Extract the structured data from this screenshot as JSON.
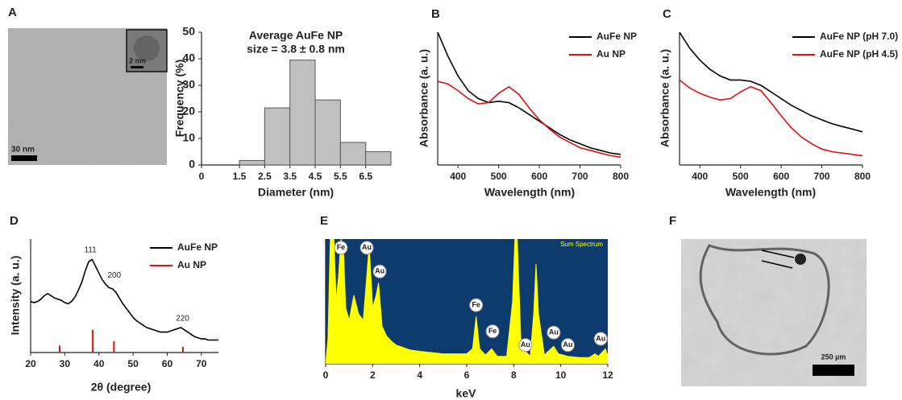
{
  "panel_labels": [
    "A",
    "B",
    "C",
    "D",
    "E",
    "F"
  ],
  "micrograph_a": {
    "scale_bar": "30 nm",
    "inset_scale_bar": "2 nm"
  },
  "micrograph_f": {
    "scale_bar": "250 µm"
  },
  "chart_data": [
    {
      "type": "histogram",
      "annotation": [
        "Average AuFe NP",
        "size = 3.8 ± 0.8 nm"
      ],
      "x_label": "Diameter (nm)",
      "y_label": "Frequency (%)",
      "bins": [
        1.5,
        2.5,
        3.5,
        4.5,
        5.5,
        6.5,
        7.5
      ],
      "values": [
        1.7,
        21.5,
        39.5,
        24.5,
        8.5,
        5
      ],
      "color": "#c0c0c0",
      "xlim": [
        0,
        7.5
      ],
      "xticks": [
        0,
        1.5,
        2.5,
        3.5,
        4.5,
        5.5,
        6.5
      ],
      "ylim": [
        0,
        50
      ],
      "yticks": [
        0,
        10,
        20,
        30,
        40,
        50
      ]
    },
    {
      "type": "line",
      "x_label": "Wavelength (nm)",
      "y_label": "Absorbance (a. u.)",
      "x": [
        350,
        375,
        400,
        425,
        450,
        475,
        500,
        525,
        550,
        575,
        600,
        625,
        650,
        675,
        700,
        725,
        750,
        775,
        800
      ],
      "series": [
        {
          "name": "AuFe NP",
          "color": "#000000",
          "values": [
            1.0,
            0.82,
            0.67,
            0.56,
            0.5,
            0.47,
            0.48,
            0.47,
            0.43,
            0.38,
            0.33,
            0.28,
            0.23,
            0.19,
            0.16,
            0.13,
            0.11,
            0.09,
            0.08
          ]
        },
        {
          "name": "Au NP",
          "color": "#e01010",
          "values": [
            0.63,
            0.61,
            0.56,
            0.5,
            0.46,
            0.47,
            0.54,
            0.59,
            0.53,
            0.43,
            0.34,
            0.27,
            0.21,
            0.17,
            0.13,
            0.11,
            0.09,
            0.07,
            0.06
          ]
        }
      ],
      "xlim": [
        350,
        800
      ],
      "xticks": [
        400,
        500,
        600,
        700,
        800
      ],
      "ylim": [
        0,
        1
      ]
    },
    {
      "type": "line",
      "x_label": "Wavelength (nm)",
      "y_label": "Absorbance (a. u.)",
      "x": [
        350,
        375,
        400,
        425,
        450,
        475,
        500,
        525,
        550,
        575,
        600,
        625,
        650,
        675,
        700,
        725,
        750,
        775,
        800
      ],
      "series": [
        {
          "name": "AuFe NP (pH 7.0)",
          "color": "#000000",
          "values": [
            1.0,
            0.88,
            0.79,
            0.72,
            0.67,
            0.64,
            0.64,
            0.63,
            0.6,
            0.55,
            0.5,
            0.45,
            0.41,
            0.37,
            0.34,
            0.31,
            0.29,
            0.27,
            0.25
          ]
        },
        {
          "name": "AuFe NP (pH 4.5)",
          "color": "#e01010",
          "values": [
            0.64,
            0.58,
            0.54,
            0.51,
            0.49,
            0.5,
            0.55,
            0.59,
            0.56,
            0.47,
            0.37,
            0.28,
            0.21,
            0.16,
            0.12,
            0.1,
            0.09,
            0.08,
            0.07
          ]
        }
      ],
      "xlim": [
        350,
        800
      ],
      "xticks": [
        400,
        500,
        600,
        700,
        800
      ],
      "ylim": [
        0,
        1
      ]
    },
    {
      "type": "line",
      "x_label": "2θ (degree)",
      "y_label": "Intensity (a. u.)",
      "x": [
        20,
        21,
        22,
        23,
        24,
        25,
        26,
        27,
        28,
        29,
        30,
        31,
        32,
        33,
        34,
        35,
        36,
        37,
        38,
        39,
        40,
        41,
        42,
        43,
        44,
        45,
        46,
        47,
        48,
        49,
        50,
        51,
        52,
        53,
        54,
        55,
        56,
        57,
        58,
        59,
        60,
        61,
        62,
        63,
        64,
        65,
        66,
        67,
        68,
        69,
        70,
        71,
        72,
        73,
        74,
        75
      ],
      "series": [
        {
          "name": "AuFe NP",
          "color": "#000000",
          "values": [
            0.45,
            0.44,
            0.45,
            0.47,
            0.5,
            0.52,
            0.5,
            0.48,
            0.47,
            0.46,
            0.44,
            0.43,
            0.45,
            0.49,
            0.55,
            0.62,
            0.72,
            0.8,
            0.82,
            0.76,
            0.7,
            0.64,
            0.6,
            0.57,
            0.56,
            0.53,
            0.48,
            0.43,
            0.39,
            0.35,
            0.31,
            0.28,
            0.26,
            0.24,
            0.22,
            0.21,
            0.2,
            0.19,
            0.18,
            0.18,
            0.18,
            0.19,
            0.2,
            0.21,
            0.22,
            0.2,
            0.18,
            0.16,
            0.14,
            0.13,
            0.12,
            0.12,
            0.11,
            0.11,
            0.11,
            0.11
          ]
        },
        {
          "name": "Au NP",
          "color": "#e01010",
          "style": "stick",
          "x": [
            28.5,
            38.2,
            44.4,
            64.6
          ],
          "values": [
            0.06,
            0.2,
            0.1,
            0.05
          ]
        }
      ],
      "annotations": [
        {
          "text": "111",
          "x": 37.5,
          "y": 0.9
        },
        {
          "text": "200",
          "x": 44.5,
          "y": 0.68
        },
        {
          "text": "220",
          "x": 64.5,
          "y": 0.3
        }
      ],
      "xlim": [
        20,
        75
      ],
      "xticks": [
        20,
        30,
        40,
        50,
        60,
        70
      ],
      "ylim": [
        0,
        1
      ]
    },
    {
      "type": "area",
      "x_label": "keV",
      "inner_title": "Sum Spectrum",
      "background": "#0d3b6e",
      "color": "#ffff00",
      "x": [
        0,
        0.1,
        0.2,
        0.35,
        0.45,
        0.55,
        0.65,
        0.75,
        0.85,
        1.0,
        1.2,
        1.4,
        1.6,
        1.75,
        1.85,
        2.0,
        2.15,
        2.25,
        2.4,
        2.6,
        2.8,
        3.0,
        3.3,
        3.6,
        4.0,
        4.5,
        5.0,
        5.5,
        6.0,
        6.25,
        6.4,
        6.55,
        6.8,
        7.06,
        7.3,
        7.7,
        7.95,
        8.05,
        8.15,
        8.3,
        8.5,
        8.7,
        8.85,
        8.95,
        9.05,
        9.3,
        9.7,
        9.9,
        10.3,
        10.8,
        11.2,
        11.45,
        11.6,
        11.9,
        12
      ],
      "values": [
        0,
        0.2,
        1.0,
        1.0,
        0.5,
        0.7,
        1.0,
        0.95,
        0.45,
        0.35,
        0.55,
        0.4,
        0.35,
        0.7,
        0.95,
        0.45,
        0.55,
        0.65,
        0.3,
        0.22,
        0.18,
        0.15,
        0.13,
        0.11,
        0.1,
        0.09,
        0.08,
        0.08,
        0.08,
        0.12,
        0.38,
        0.12,
        0.07,
        0.12,
        0.06,
        0.06,
        0.5,
        1.0,
        1.0,
        0.2,
        0.1,
        0.06,
        0.4,
        0.8,
        0.4,
        0.07,
        0.14,
        0.08,
        0.06,
        0.05,
        0.05,
        0.08,
        0.06,
        0.12,
        0.06
      ],
      "annotations": [
        {
          "text": "Fe",
          "x": 0.65,
          "y": 0.93
        },
        {
          "text": "Au",
          "x": 1.75,
          "y": 0.93
        },
        {
          "text": "Au",
          "x": 2.3,
          "y": 0.74
        },
        {
          "text": "Fe",
          "x": 6.4,
          "y": 0.47
        },
        {
          "text": "Fe",
          "x": 7.1,
          "y": 0.26
        },
        {
          "text": "Au",
          "x": 8.5,
          "y": 0.15
        },
        {
          "text": "Au",
          "x": 9.7,
          "y": 0.25
        },
        {
          "text": "Au",
          "x": 10.3,
          "y": 0.15
        },
        {
          "text": "Au",
          "x": 11.7,
          "y": 0.2
        }
      ],
      "xlim": [
        0,
        12
      ],
      "xticks": [
        0,
        2,
        4,
        6,
        8,
        10,
        12
      ],
      "ylim": [
        0,
        1
      ]
    }
  ]
}
